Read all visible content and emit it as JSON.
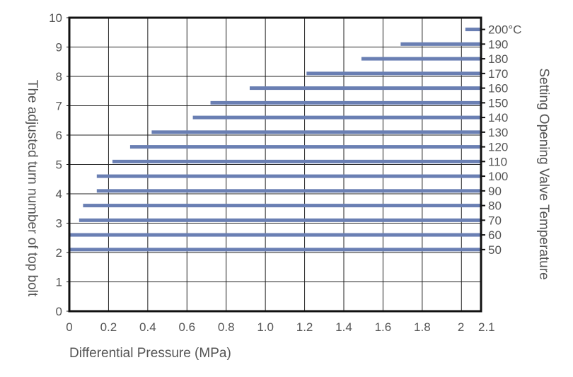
{
  "chart_data": {
    "type": "bar",
    "orientation": "horizontal-range",
    "xlabel": "Differential Pressure (MPa)",
    "ylabel": "The adjusted turn number of top bolt",
    "y2label": "Setting Opening Valve Temperature",
    "xlim": [
      0,
      2.1
    ],
    "ylim": [
      0,
      10
    ],
    "x_ticks": [
      "0",
      "0.2",
      "0.4",
      "0.6",
      "0.8",
      "1.0",
      "1.2",
      "1.4",
      "1.6",
      "1.8",
      "2",
      "2.1"
    ],
    "y_ticks": [
      "0",
      "1",
      "2",
      "3",
      "4",
      "5",
      "6",
      "7",
      "8",
      "9",
      "10"
    ],
    "grid": true,
    "bar_color": "#6a7fb3",
    "bars": [
      {
        "label": "50",
        "turns": 2.1,
        "x_start": 0.0,
        "x_end": 2.1
      },
      {
        "label": "60",
        "turns": 2.6,
        "x_start": 0.0,
        "x_end": 2.1
      },
      {
        "label": "70",
        "turns": 3.1,
        "x_start": 0.05,
        "x_end": 2.1
      },
      {
        "label": "80",
        "turns": 3.6,
        "x_start": 0.07,
        "x_end": 2.1
      },
      {
        "label": "90",
        "turns": 4.1,
        "x_start": 0.14,
        "x_end": 2.1
      },
      {
        "label": "100",
        "turns": 4.6,
        "x_start": 0.14,
        "x_end": 2.1
      },
      {
        "label": "110",
        "turns": 5.1,
        "x_start": 0.22,
        "x_end": 2.1
      },
      {
        "label": "120",
        "turns": 5.6,
        "x_start": 0.31,
        "x_end": 2.1
      },
      {
        "label": "130",
        "turns": 6.1,
        "x_start": 0.42,
        "x_end": 2.1
      },
      {
        "label": "140",
        "turns": 6.6,
        "x_start": 0.63,
        "x_end": 2.1
      },
      {
        "label": "150",
        "turns": 7.1,
        "x_start": 0.72,
        "x_end": 2.1
      },
      {
        "label": "160",
        "turns": 7.6,
        "x_start": 0.92,
        "x_end": 2.1
      },
      {
        "label": "170",
        "turns": 8.1,
        "x_start": 1.21,
        "x_end": 2.1
      },
      {
        "label": "180",
        "turns": 8.6,
        "x_start": 1.49,
        "x_end": 2.1
      },
      {
        "label": "190",
        "turns": 9.1,
        "x_start": 1.69,
        "x_end": 2.1
      },
      {
        "label": "200°C",
        "turns": 9.6,
        "x_start": 2.02,
        "x_end": 2.1
      }
    ]
  }
}
